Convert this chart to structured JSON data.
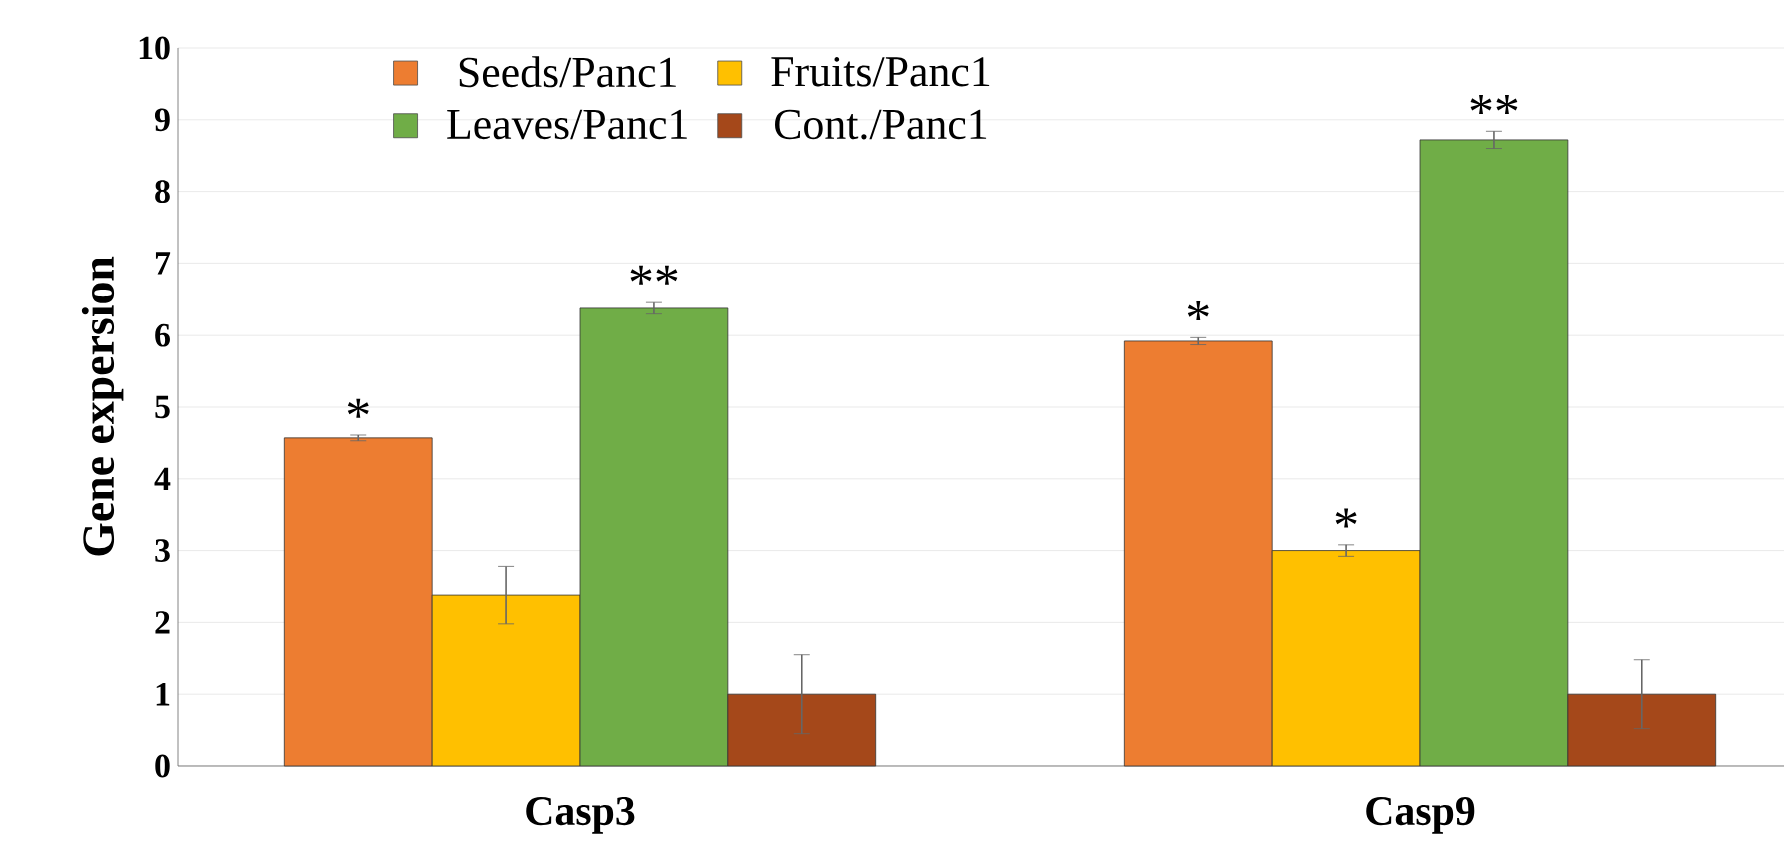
{
  "chart_data": {
    "type": "bar",
    "ylabel": "Gene expersion",
    "categories": [
      "Casp3",
      "Casp9"
    ],
    "series": [
      {
        "name": "Seeds/Panc1",
        "color": "#ed7d31",
        "values": [
          4.57,
          5.92
        ],
        "errors": [
          0.04,
          0.05
        ],
        "value_labels": [
          "*",
          "*"
        ]
      },
      {
        "name": "Fruits/Panc1",
        "color": "#ffc000",
        "values": [
          2.38,
          3.0
        ],
        "errors": [
          0.4,
          0.08
        ],
        "value_labels": [
          null,
          "*"
        ]
      },
      {
        "name": "Leaves/Panc1",
        "color": "#70ad47",
        "values": [
          6.38,
          8.72
        ],
        "errors": [
          0.08,
          0.12
        ],
        "value_labels": [
          "**",
          "**"
        ]
      },
      {
        "name": "Cont./Panc1",
        "color": "#a5481a",
        "values": [
          1.0,
          1.0
        ],
        "errors": [
          0.55,
          0.48
        ]
      }
    ],
    "ylim": [
      0,
      10
    ],
    "yticks": [
      0,
      1,
      2,
      3,
      4,
      5,
      6,
      7,
      8,
      9,
      10
    ],
    "grid": "y",
    "legend": "top left"
  }
}
